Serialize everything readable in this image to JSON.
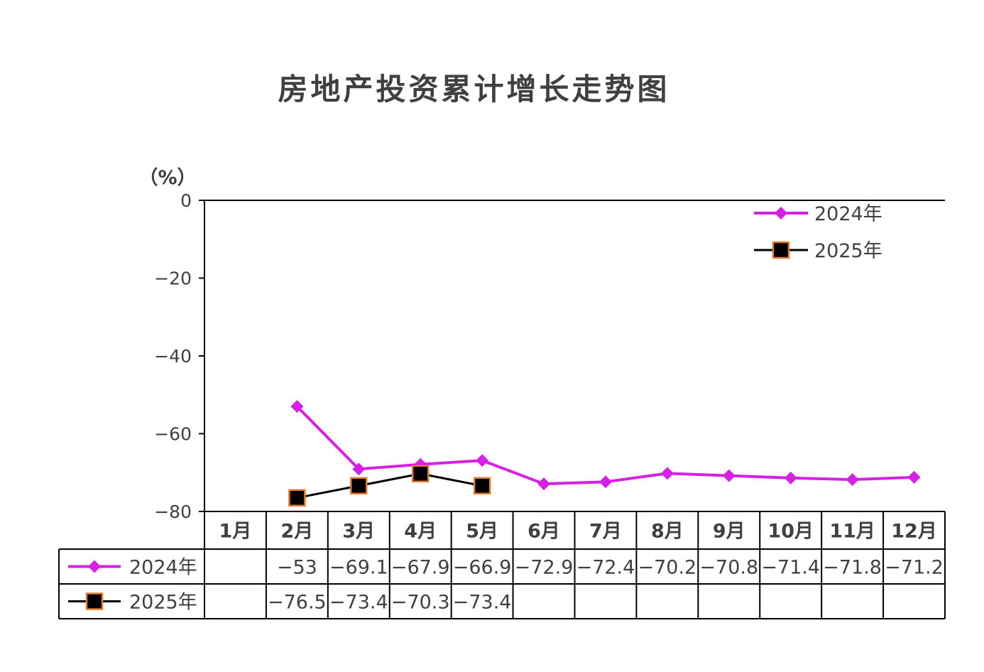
{
  "chart_data": {
    "type": "line",
    "title": "房地产投资累计增长走势图",
    "ylabel": "（%）",
    "ylim": [
      -80,
      0
    ],
    "yticks": [
      0,
      -20,
      -40,
      -60,
      -80
    ],
    "ytick_labels": [
      "0",
      "−20",
      "−40",
      "−60",
      "−80"
    ],
    "categories": [
      "1月",
      "2月",
      "3月",
      "4月",
      "5月",
      "6月",
      "7月",
      "8月",
      "9月",
      "10月",
      "11月",
      "12月"
    ],
    "series": [
      {
        "name": "2024年",
        "values": [
          null,
          -53,
          -69.1,
          -67.9,
          -66.9,
          -72.9,
          -72.4,
          -70.2,
          -70.8,
          -71.4,
          -71.8,
          -71.2
        ],
        "labels": [
          "",
          "−53",
          "−69.1",
          "−67.9",
          "−66.9",
          "−72.9",
          "−72.4",
          "−70.2",
          "−70.8",
          "−71.4",
          "−71.8",
          "−71.2"
        ],
        "color": "#d620e6",
        "marker": "diamond"
      },
      {
        "name": "2025年",
        "values": [
          null,
          -76.5,
          -73.4,
          -70.3,
          -73.4,
          null,
          null,
          null,
          null,
          null,
          null,
          null
        ],
        "labels": [
          "",
          "−76.5",
          "−73.4",
          "−70.3",
          "−73.4",
          "",
          "",
          "",
          "",
          "",
          "",
          ""
        ],
        "color": "#000000",
        "marker_fill": "#000000",
        "marker_edge": "#e07b30",
        "marker": "square"
      }
    ],
    "legend_position": "top-right",
    "data_table": true,
    "grid": false
  }
}
